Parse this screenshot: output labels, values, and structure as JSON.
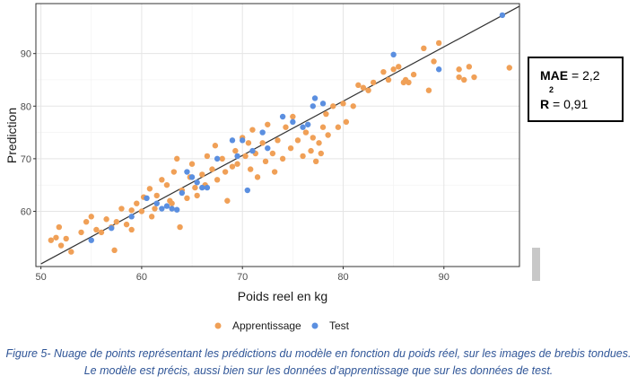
{
  "colors": {
    "train": "#F0A057",
    "test": "#5B8FE0",
    "caption": "#2f5597",
    "panel_border": "#333333",
    "grid": "#e5e5e5"
  },
  "metrics": {
    "mae_label": "MAE",
    "mae_value": "= 2,2",
    "r2_label": "R",
    "r2_sup": "2",
    "r2_value": "= 0,91"
  },
  "caption": "Figure 5- Nuage de points représentant les prédictions du modèle en fonction du poids réel, sur les images de brebis tondues. Le modèle est précis, aussi bien sur les données d’apprentissage que sur les données de test.",
  "chart_data": {
    "type": "scatter",
    "xlabel": "Poids reel en kg",
    "ylabel": "Prediction",
    "xlim": [
      49.5,
      97.5
    ],
    "ylim": [
      49.5,
      99.5
    ],
    "x_ticks": [
      50,
      60,
      70,
      80,
      90
    ],
    "y_ticks": [
      60,
      70,
      80,
      90
    ],
    "grid": true,
    "reference_line": {
      "from": [
        50,
        50
      ],
      "to": [
        97.5,
        99
      ]
    },
    "legend_position": "bottom",
    "series": [
      {
        "name": "Apprentissage",
        "color": "#F0A057",
        "points": [
          [
            51,
            54.5
          ],
          [
            51.5,
            55
          ],
          [
            51.8,
            57
          ],
          [
            52,
            53.5
          ],
          [
            52.5,
            54.8
          ],
          [
            53,
            52.3
          ],
          [
            54,
            56
          ],
          [
            54.5,
            58
          ],
          [
            55,
            59
          ],
          [
            55.5,
            56.5
          ],
          [
            56,
            56
          ],
          [
            56.5,
            58.5
          ],
          [
            57,
            57
          ],
          [
            57.3,
            52.6
          ],
          [
            57.5,
            58
          ],
          [
            58,
            60.5
          ],
          [
            58.5,
            57.5
          ],
          [
            59,
            56.5
          ],
          [
            59,
            60.2
          ],
          [
            59.5,
            61.5
          ],
          [
            60,
            60
          ],
          [
            60.2,
            62.7
          ],
          [
            60.8,
            64.3
          ],
          [
            61,
            59
          ],
          [
            61.3,
            60.5
          ],
          [
            61.5,
            63
          ],
          [
            62,
            66
          ],
          [
            62.5,
            65
          ],
          [
            62.8,
            62
          ],
          [
            63,
            61.5
          ],
          [
            63.2,
            67.5
          ],
          [
            63.5,
            70
          ],
          [
            63.8,
            57
          ],
          [
            64,
            64
          ],
          [
            64.5,
            62.5
          ],
          [
            64.8,
            66.5
          ],
          [
            65,
            69
          ],
          [
            65.3,
            64.5
          ],
          [
            65.5,
            63
          ],
          [
            66,
            67
          ],
          [
            66.3,
            65
          ],
          [
            66.5,
            70.5
          ],
          [
            67,
            68
          ],
          [
            67.3,
            72.5
          ],
          [
            67.5,
            66
          ],
          [
            68,
            70
          ],
          [
            68.3,
            67.5
          ],
          [
            68.5,
            62
          ],
          [
            69,
            68.5
          ],
          [
            69.3,
            71.5
          ],
          [
            69.5,
            69
          ],
          [
            70,
            74
          ],
          [
            70.3,
            70.5
          ],
          [
            70.6,
            73
          ],
          [
            70.8,
            68
          ],
          [
            71,
            75.5
          ],
          [
            71.3,
            71
          ],
          [
            71.5,
            66.5
          ],
          [
            72,
            73
          ],
          [
            72.3,
            69.5
          ],
          [
            72.5,
            76.5
          ],
          [
            73,
            71
          ],
          [
            73.2,
            67.5
          ],
          [
            73.5,
            73.5
          ],
          [
            74,
            70
          ],
          [
            74.3,
            76
          ],
          [
            74.8,
            72
          ],
          [
            75,
            78
          ],
          [
            75.5,
            73.5
          ],
          [
            76,
            70.5
          ],
          [
            76.3,
            75
          ],
          [
            76.8,
            71.5
          ],
          [
            77,
            74
          ],
          [
            77.3,
            69.5
          ],
          [
            77.6,
            73
          ],
          [
            77.8,
            71
          ],
          [
            78,
            76
          ],
          [
            78.3,
            78.5
          ],
          [
            78.5,
            74.5
          ],
          [
            79,
            80
          ],
          [
            79.5,
            76
          ],
          [
            80,
            80.5
          ],
          [
            80.3,
            77
          ],
          [
            81,
            80
          ],
          [
            81.5,
            84
          ],
          [
            82,
            83.5
          ],
          [
            82.5,
            83
          ],
          [
            83,
            84.5
          ],
          [
            84,
            86.5
          ],
          [
            84.5,
            85
          ],
          [
            85,
            87
          ],
          [
            85.5,
            87.5
          ],
          [
            86,
            84.5
          ],
          [
            86.2,
            85
          ],
          [
            86.5,
            84.5
          ],
          [
            87,
            86
          ],
          [
            88,
            91
          ],
          [
            88.5,
            83
          ],
          [
            89,
            88.5
          ],
          [
            89.5,
            92
          ],
          [
            91.5,
            85.5
          ],
          [
            91.5,
            87
          ],
          [
            92,
            85
          ],
          [
            92.5,
            87.5
          ],
          [
            93,
            85.5
          ],
          [
            96.5,
            87.3
          ]
        ]
      },
      {
        "name": "Test",
        "color": "#5B8FE0",
        "points": [
          [
            55,
            54.5
          ],
          [
            57,
            56.8
          ],
          [
            59,
            59
          ],
          [
            60.5,
            62.5
          ],
          [
            61.5,
            61.5
          ],
          [
            62,
            60.5
          ],
          [
            62.5,
            61
          ],
          [
            63,
            60.5
          ],
          [
            63.5,
            60.3
          ],
          [
            64,
            63.5
          ],
          [
            64.5,
            67.5
          ],
          [
            65,
            66.5
          ],
          [
            65.5,
            65.5
          ],
          [
            66,
            64.5
          ],
          [
            66.5,
            64.5
          ],
          [
            67.5,
            70
          ],
          [
            69,
            73.5
          ],
          [
            69.5,
            70.5
          ],
          [
            70,
            73.5
          ],
          [
            70.5,
            64
          ],
          [
            71,
            71.5
          ],
          [
            72,
            75
          ],
          [
            72.5,
            72
          ],
          [
            74,
            78
          ],
          [
            75,
            77
          ],
          [
            76,
            76
          ],
          [
            76.5,
            76.5
          ],
          [
            77,
            80
          ],
          [
            77.2,
            81.5
          ],
          [
            78,
            80.5
          ],
          [
            85,
            89.8
          ],
          [
            89.5,
            87
          ],
          [
            95.8,
            97.3
          ]
        ]
      }
    ]
  }
}
